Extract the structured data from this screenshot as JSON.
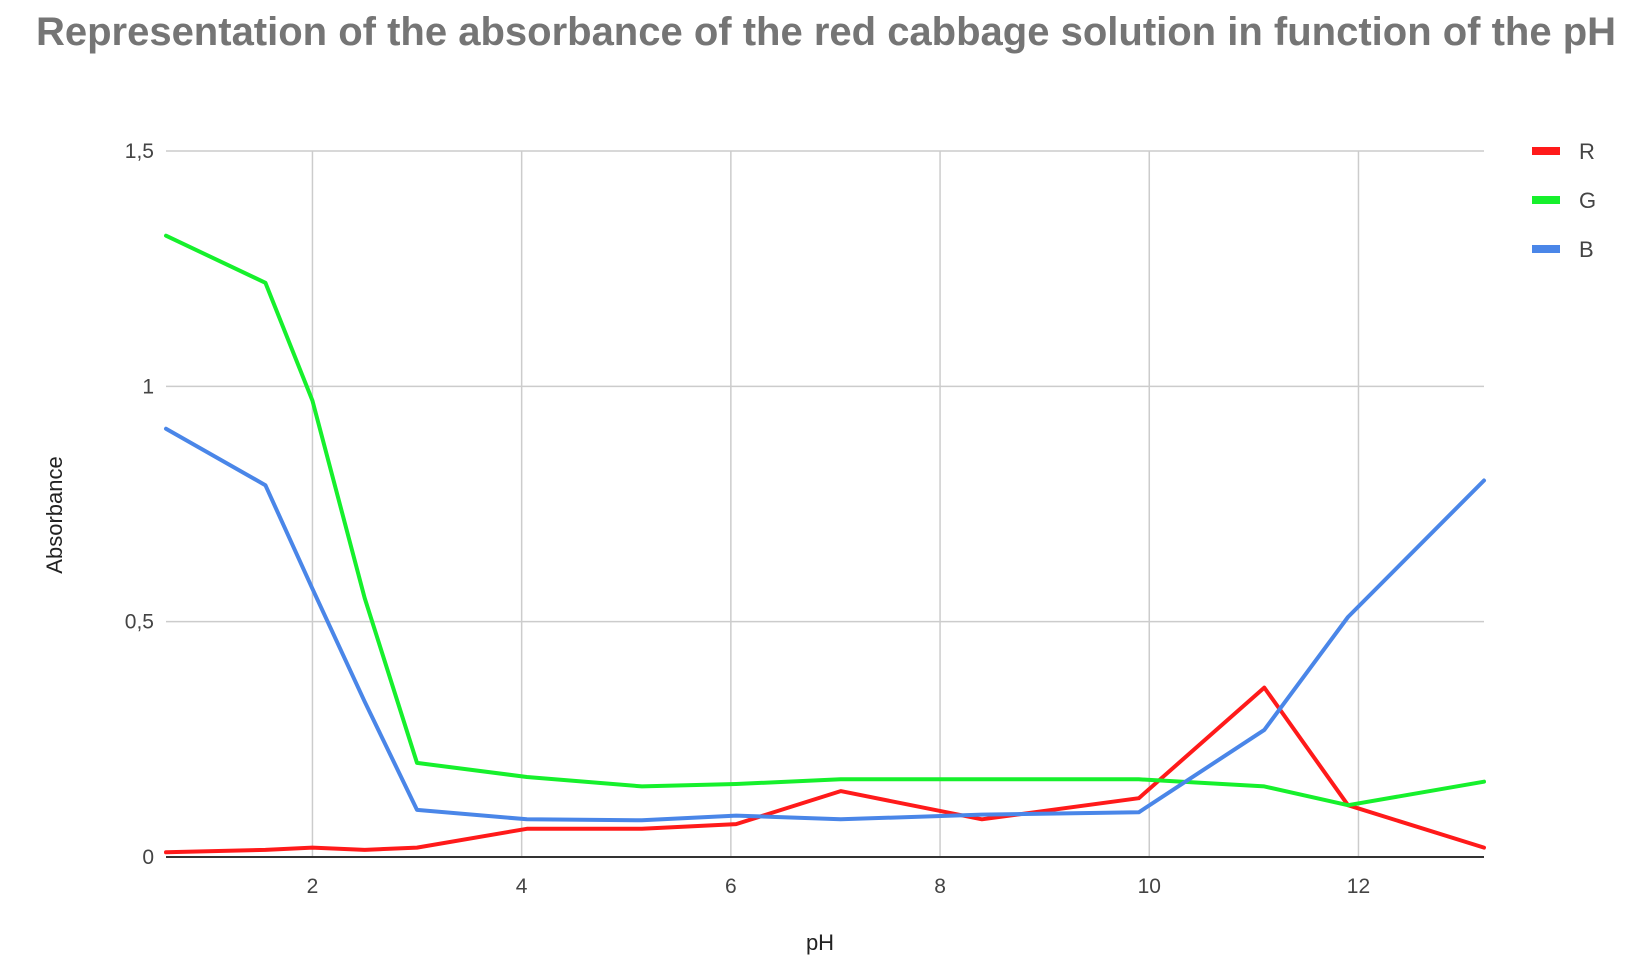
{
  "chart_data": {
    "type": "line",
    "title": "Representation of the absorbance of the red cabbage solution in function of the pH",
    "xlabel": "pH",
    "ylabel": "Absorbance",
    "xlim": [
      0.6,
      13.2
    ],
    "ylim": [
      0,
      1.5
    ],
    "xticks": [
      2,
      4,
      6,
      8,
      10,
      12
    ],
    "yticks": [
      0,
      0.5,
      1,
      1.5
    ],
    "xtick_labels": [
      "2",
      "4",
      "6",
      "8",
      "10",
      "12"
    ],
    "ytick_labels": [
      "0",
      "0,5",
      "1",
      "1,5"
    ],
    "grid": true,
    "legend_position": "right",
    "series": [
      {
        "name": "R",
        "color": "#ff1a1a",
        "x": [
          0.6,
          1.55,
          2.0,
          2.5,
          3.0,
          4.05,
          5.15,
          6.05,
          7.05,
          8.4,
          9.9,
          11.1,
          11.9,
          13.2
        ],
        "y": [
          0.01,
          0.015,
          0.02,
          0.015,
          0.02,
          0.06,
          0.06,
          0.07,
          0.14,
          0.08,
          0.125,
          0.36,
          0.11,
          0.02
        ]
      },
      {
        "name": "G",
        "color": "#16f02c",
        "x": [
          0.6,
          1.55,
          2.0,
          2.5,
          3.0,
          4.05,
          5.15,
          6.05,
          7.05,
          8.4,
          9.9,
          11.1,
          11.9,
          13.2
        ],
        "y": [
          1.32,
          1.22,
          0.97,
          0.55,
          0.2,
          0.17,
          0.15,
          0.155,
          0.165,
          0.165,
          0.165,
          0.15,
          0.11,
          0.16
        ]
      },
      {
        "name": "B",
        "color": "#4a86e8",
        "x": [
          0.6,
          1.55,
          2.0,
          2.5,
          3.0,
          4.05,
          5.15,
          6.05,
          7.05,
          8.4,
          9.9,
          11.1,
          11.9,
          13.2
        ],
        "y": [
          0.91,
          0.79,
          0.57,
          0.33,
          0.1,
          0.08,
          0.078,
          0.088,
          0.08,
          0.09,
          0.095,
          0.27,
          0.51,
          0.8
        ]
      }
    ]
  }
}
